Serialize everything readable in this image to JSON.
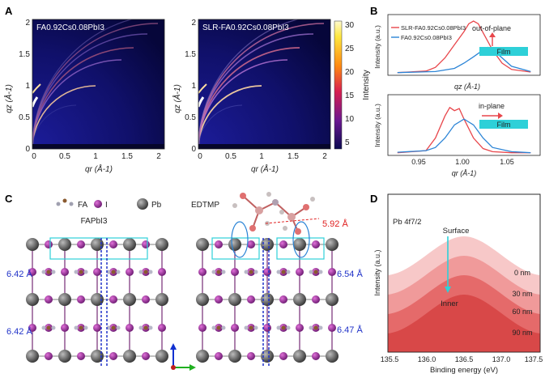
{
  "panels": {
    "A": {
      "letter": "A",
      "left_title": "FA0.92Cs0.08PbI3",
      "right_title": "SLR-FA0.92Cs0.08PbI3",
      "ylabel": "qz (Å-1)",
      "xlabel": "qr (Å-1)",
      "ticks": [
        "0",
        "0.5",
        "1",
        "1.5",
        "2"
      ],
      "colorbar_label": "Intensity",
      "colorbar_ticks": [
        "30",
        "25",
        "20",
        "15",
        "10",
        "5"
      ]
    },
    "B": {
      "letter": "B",
      "legend": [
        "SLR-FA0.92Cs0.08PbI3",
        "FA0.92Cs0.08PbI3"
      ],
      "top_tag": "out-of-plane",
      "bottom_tag": "in-plane",
      "film_label": "Film",
      "top_xlabel": "qz (Å-1)",
      "bottom_xlabel": "qr (Å-1)",
      "ylabel": "Intensity (a.u.)",
      "xticks": [
        "0.95",
        "1.00",
        "1.05"
      ]
    },
    "C": {
      "letter": "C",
      "legend": [
        "FA",
        "I",
        "Pb"
      ],
      "left_title": "FAPbI3",
      "right_title": "EDTMP",
      "distance_label": "5.92 Å",
      "left_spacings": [
        "6.42 Å",
        "6.42 Å"
      ],
      "right_spacings": [
        "6.54 Å",
        "6.47 Å"
      ]
    },
    "D": {
      "letter": "D",
      "tag": "Pb 4f7/2",
      "surface_label": "Surface",
      "inner_label": "Inner",
      "depths": [
        "0 nm",
        "30 nm",
        "60 nm",
        "90 nm"
      ],
      "ylabel": "Intensity (a.u.)",
      "xlabel": "Binding energy (eV)",
      "xticks": [
        "135.5",
        "136.0",
        "136.5",
        "137.0",
        "137.5"
      ]
    }
  },
  "colors": {
    "giwaxs_bg": "#08084a",
    "slr_curve": "#e8464b",
    "control_curve": "#2b84d6",
    "film": "#2ed0d8",
    "pb_atom": "#555555",
    "i_atom": "#9b2a8f",
    "spacing_text": "#2032c8",
    "distance_text": "#e02020"
  },
  "chart_data": [
    {
      "type": "line",
      "title": "",
      "xlabel": "qz (Å-1)",
      "ylabel": "Intensity (a.u.)",
      "xlim": [
        0.92,
        1.08
      ],
      "series": [
        {
          "name": "SLR-FA0.92Cs0.08PbI3",
          "x": [
            0.93,
            0.96,
            0.97,
            0.98,
            0.99,
            1.0,
            1.005,
            1.01,
            1.015,
            1.02,
            1.03,
            1.04,
            1.05,
            1.07
          ],
          "y": [
            0.02,
            0.05,
            0.12,
            0.3,
            0.55,
            0.8,
            0.95,
            1.0,
            0.95,
            0.78,
            0.45,
            0.2,
            0.08,
            0.03
          ]
        },
        {
          "name": "FA0.92Cs0.08PbI3",
          "x": [
            0.93,
            0.97,
            0.99,
            1.0,
            1.01,
            1.02,
            1.025,
            1.03,
            1.04,
            1.05,
            1.07
          ],
          "y": [
            0.02,
            0.04,
            0.1,
            0.2,
            0.32,
            0.45,
            0.5,
            0.46,
            0.3,
            0.14,
            0.04
          ]
        }
      ]
    },
    {
      "type": "line",
      "title": "",
      "xlabel": "qr (Å-1)",
      "ylabel": "Intensity (a.u.)",
      "xlim": [
        0.92,
        1.08
      ],
      "series": [
        {
          "name": "SLR-FA0.92Cs0.08PbI3",
          "x": [
            0.93,
            0.96,
            0.97,
            0.98,
            0.985,
            0.99,
            0.995,
            1.0,
            1.01,
            1.02,
            1.03,
            1.05,
            1.07
          ],
          "y": [
            0.02,
            0.06,
            0.3,
            0.72,
            0.88,
            0.82,
            0.86,
            0.66,
            0.3,
            0.1,
            0.04,
            0.02,
            0.02
          ]
        },
        {
          "name": "FA0.92Cs0.08PbI3",
          "x": [
            0.93,
            0.96,
            0.97,
            0.98,
            0.99,
            1.0,
            1.01,
            1.02,
            1.03,
            1.05,
            1.07
          ],
          "y": [
            0.03,
            0.06,
            0.12,
            0.3,
            0.55,
            0.66,
            0.55,
            0.3,
            0.12,
            0.04,
            0.02
          ]
        }
      ]
    },
    {
      "type": "area",
      "title": "",
      "xlabel": "Binding energy (eV)",
      "ylabel": "Intensity (a.u.)",
      "xlim": [
        135.5,
        137.5
      ],
      "series": [
        {
          "name": "0 nm",
          "peak_x": 136.5,
          "peak_y": 1.0
        },
        {
          "name": "30 nm",
          "peak_x": 136.5,
          "peak_y": 0.82
        },
        {
          "name": "60 nm",
          "peak_x": 136.5,
          "peak_y": 0.66
        },
        {
          "name": "90 nm",
          "peak_x": 136.5,
          "peak_y": 0.52
        }
      ]
    }
  ]
}
